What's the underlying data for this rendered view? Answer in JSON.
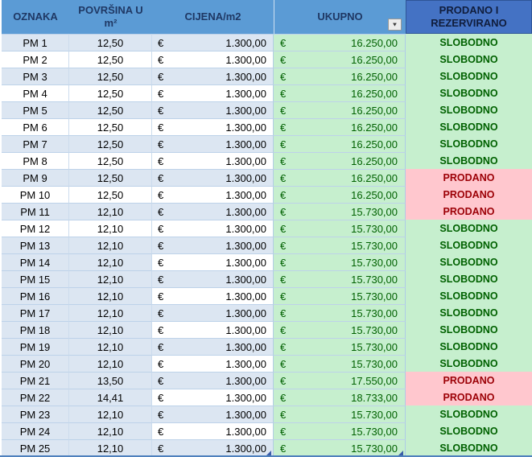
{
  "table": {
    "headers": {
      "oznaka": "OZNAKA",
      "povrsina_line1": "POVRŠINA U",
      "povrsina_line2": "m²",
      "cijena": "CIJENA/m2",
      "ukupno": "UKUPNO",
      "status_line1": "PRODANO I",
      "status_line2": "REZERVIRANO"
    },
    "currency_symbol": "€",
    "status_values": {
      "free": "SLOBODNO",
      "sold": "PRODANO"
    },
    "filter_icon_glyph": "▼",
    "rows": [
      {
        "label": "PM 1",
        "area": "12,50",
        "price": "1.300,00",
        "total": "16.250,00",
        "status": "SLOBODNO",
        "band": "blue",
        "price_white": false
      },
      {
        "label": "PM 2",
        "area": "12,50",
        "price": "1.300,00",
        "total": "16.250,00",
        "status": "SLOBODNO",
        "band": "white",
        "price_white": false
      },
      {
        "label": "PM 3",
        "area": "12,50",
        "price": "1.300,00",
        "total": "16.250,00",
        "status": "SLOBODNO",
        "band": "blue",
        "price_white": false
      },
      {
        "label": "PM 4",
        "area": "12,50",
        "price": "1.300,00",
        "total": "16.250,00",
        "status": "SLOBODNO",
        "band": "white",
        "price_white": false
      },
      {
        "label": "PM 5",
        "area": "12,50",
        "price": "1.300,00",
        "total": "16.250,00",
        "status": "SLOBODNO",
        "band": "blue",
        "price_white": false
      },
      {
        "label": "PM 6",
        "area": "12,50",
        "price": "1.300,00",
        "total": "16.250,00",
        "status": "SLOBODNO",
        "band": "white",
        "price_white": false
      },
      {
        "label": "PM 7",
        "area": "12,50",
        "price": "1.300,00",
        "total": "16.250,00",
        "status": "SLOBODNO",
        "band": "blue",
        "price_white": false
      },
      {
        "label": "PM 8",
        "area": "12,50",
        "price": "1.300,00",
        "total": "16.250,00",
        "status": "SLOBODNO",
        "band": "white",
        "price_white": false
      },
      {
        "label": "PM 9",
        "area": "12,50",
        "price": "1.300,00",
        "total": "16.250,00",
        "status": "PRODANO",
        "band": "blue",
        "price_white": false
      },
      {
        "label": "PM 10",
        "area": "12,50",
        "price": "1.300,00",
        "total": "16.250,00",
        "status": "PRODANO",
        "band": "white",
        "price_white": false
      },
      {
        "label": "PM 11",
        "area": "12,10",
        "price": "1.300,00",
        "total": "15.730,00",
        "status": "PRODANO",
        "band": "blue",
        "price_white": false
      },
      {
        "label": "PM 12",
        "area": "12,10",
        "price": "1.300,00",
        "total": "15.730,00",
        "status": "SLOBODNO",
        "band": "white",
        "price_white": false
      },
      {
        "label": "PM 13",
        "area": "12,10",
        "price": "1.300,00",
        "total": "15.730,00",
        "status": "SLOBODNO",
        "band": "blue",
        "price_white": false
      },
      {
        "label": "PM 14",
        "area": "12,10",
        "price": "1.300,00",
        "total": "15.730,00",
        "status": "SLOBODNO",
        "band": "blue",
        "price_white": true
      },
      {
        "label": "PM 15",
        "area": "12,10",
        "price": "1.300,00",
        "total": "15.730,00",
        "status": "SLOBODNO",
        "band": "blue",
        "price_white": false
      },
      {
        "label": "PM 16",
        "area": "12,10",
        "price": "1.300,00",
        "total": "15.730,00",
        "status": "SLOBODNO",
        "band": "blue",
        "price_white": true
      },
      {
        "label": "PM 17",
        "area": "12,10",
        "price": "1.300,00",
        "total": "15.730,00",
        "status": "SLOBODNO",
        "band": "blue",
        "price_white": false
      },
      {
        "label": "PM 18",
        "area": "12,10",
        "price": "1.300,00",
        "total": "15.730,00",
        "status": "SLOBODNO",
        "band": "blue",
        "price_white": true
      },
      {
        "label": "PM 19",
        "area": "12,10",
        "price": "1.300,00",
        "total": "15.730,00",
        "status": "SLOBODNO",
        "band": "blue",
        "price_white": false
      },
      {
        "label": "PM 20",
        "area": "12,10",
        "price": "1.300,00",
        "total": "15.730,00",
        "status": "SLOBODNO",
        "band": "blue",
        "price_white": true
      },
      {
        "label": "PM 21",
        "area": "13,50",
        "price": "1.300,00",
        "total": "17.550,00",
        "status": "PRODANO",
        "band": "blue",
        "price_white": false
      },
      {
        "label": "PM 22",
        "area": "14,41",
        "price": "1.300,00",
        "total": "18.733,00",
        "status": "PRODANO",
        "band": "blue",
        "price_white": true
      },
      {
        "label": "PM 23",
        "area": "12,10",
        "price": "1.300,00",
        "total": "15.730,00",
        "status": "SLOBODNO",
        "band": "blue",
        "price_white": false
      },
      {
        "label": "PM 24",
        "area": "12,10",
        "price": "1.300,00",
        "total": "15.730,00",
        "status": "SLOBODNO",
        "band": "blue",
        "price_white": true
      },
      {
        "label": "PM 25",
        "area": "12,10",
        "price": "1.300,00",
        "total": "15.730,00",
        "status": "SLOBODNO",
        "band": "blue",
        "price_white": false
      }
    ]
  },
  "colors": {
    "header_blue": "#5b9bd5",
    "header_dark_blue": "#4472c4",
    "header_text": "#1f3864",
    "band_blue": "#dce6f2",
    "good_bg": "#c6efce",
    "good_text": "#006100",
    "bad_bg": "#ffc7ce",
    "bad_text": "#9c0006",
    "bottom_border": "#4f81bd"
  }
}
